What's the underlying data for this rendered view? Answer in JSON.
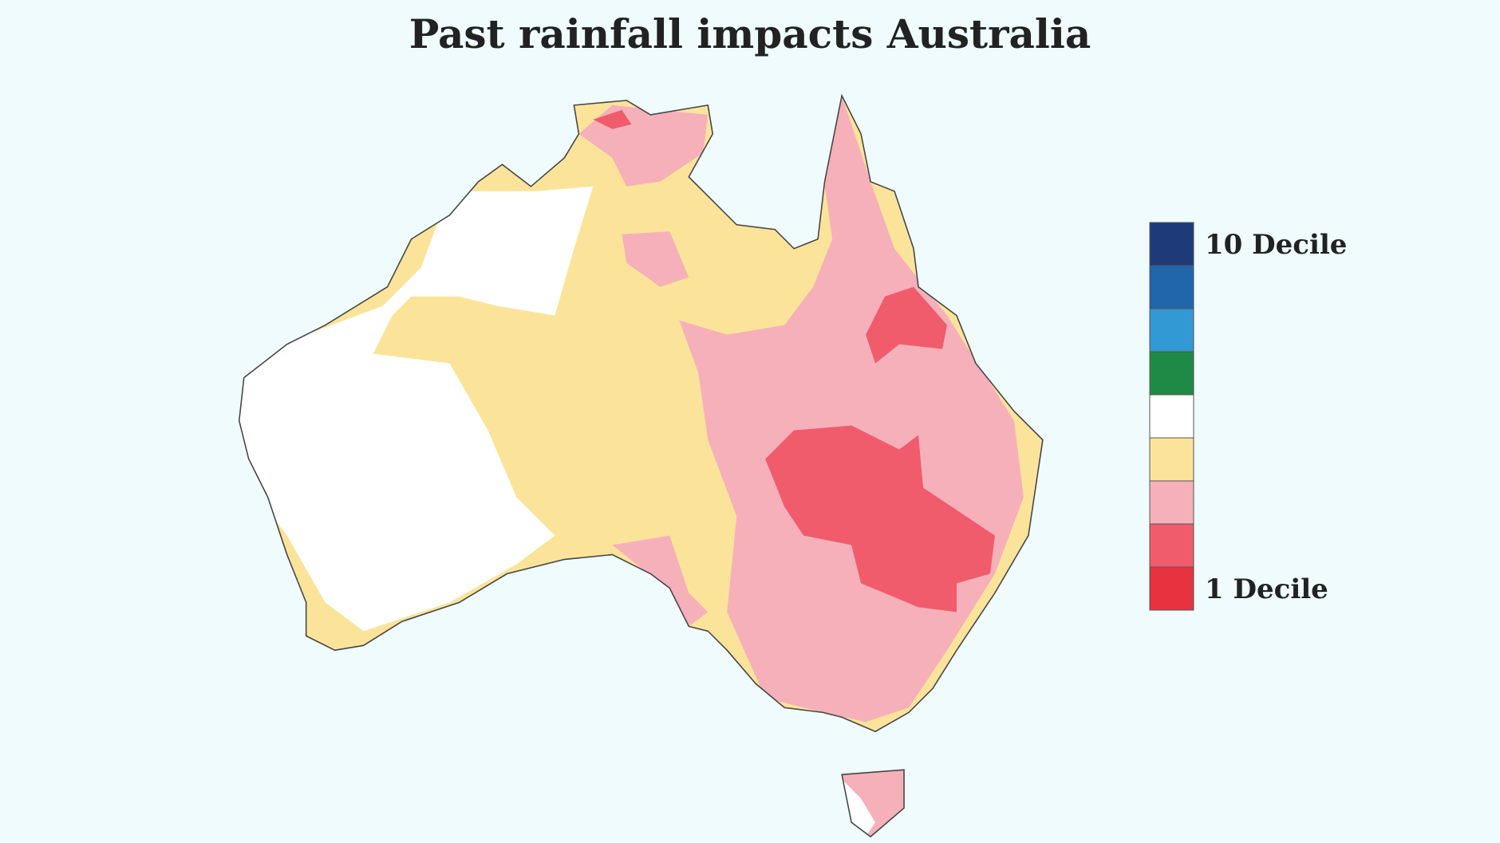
{
  "title": "Past rainfall impacts Australia",
  "legend": {
    "max_label": "10 Decile",
    "min_label": "1 Decile",
    "colors": [
      "#1e3a78",
      "#1f66ab",
      "#3399d4",
      "#1f8a45",
      "#ffffff",
      "#fbe49a",
      "#f6b0ba",
      "#f05c6c",
      "#e8323f"
    ]
  }
}
